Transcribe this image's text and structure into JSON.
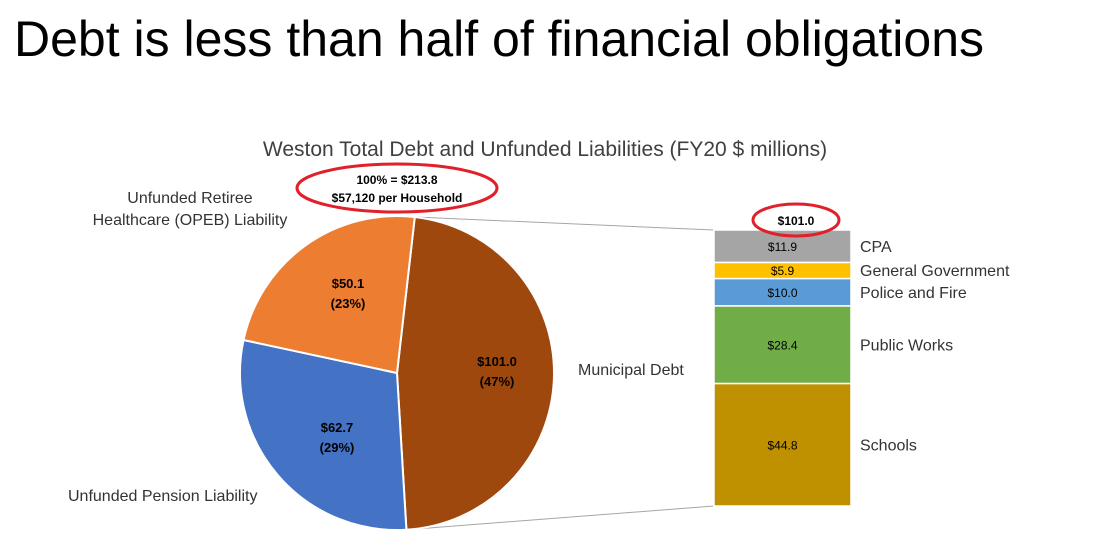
{
  "slide": {
    "title": "Debt is less than half of financial obligations"
  },
  "colors": {
    "municipal": "#9E480E",
    "pension": "#4472C4",
    "opeb": "#ED7D31",
    "cpa": "#A5A5A5",
    "general_government": "#FFC000",
    "police_fire": "#5B9BD5",
    "public_works": "#70AD47",
    "schools": "#BF9000",
    "highlight": "#E0202A"
  },
  "chart_data": [
    {
      "type": "pie",
      "title": "Weston Total Debt and Unfunded Liabilities (FY20 $ millions)",
      "total_callout": [
        "100% = $213.8",
        "$57,120 per Household"
      ],
      "slices": [
        {
          "name": "Municipal Debt",
          "value": 101.0,
          "value_label": "$101.0",
          "percent_label": "(47%)",
          "color": "#9E480E"
        },
        {
          "name": "Unfunded Pension Liability",
          "value": 62.7,
          "value_label": "$62.7",
          "percent_label": "(29%)",
          "color": "#4472C4"
        },
        {
          "name": "Unfunded Retiree Healthcare (OPEB) Liability",
          "value": 50.1,
          "value_label": "$50.1",
          "percent_label": "(23%)",
          "color": "#ED7D31"
        }
      ]
    },
    {
      "type": "bar",
      "stacked": true,
      "total_label": "$101.0",
      "segments": [
        {
          "name": "CPA",
          "value": 11.9,
          "value_label": "$11.9",
          "color": "#A5A5A5"
        },
        {
          "name": "General Government",
          "value": 5.9,
          "value_label": "$5.9",
          "color": "#FFC000"
        },
        {
          "name": "Police and Fire",
          "value": 10.0,
          "value_label": "$10.0",
          "color": "#5B9BD5"
        },
        {
          "name": "Public Works",
          "value": 28.4,
          "value_label": "$28.4",
          "color": "#70AD47"
        },
        {
          "name": "Schools",
          "value": 44.8,
          "value_label": "$44.8",
          "color": "#BF9000"
        }
      ]
    }
  ]
}
